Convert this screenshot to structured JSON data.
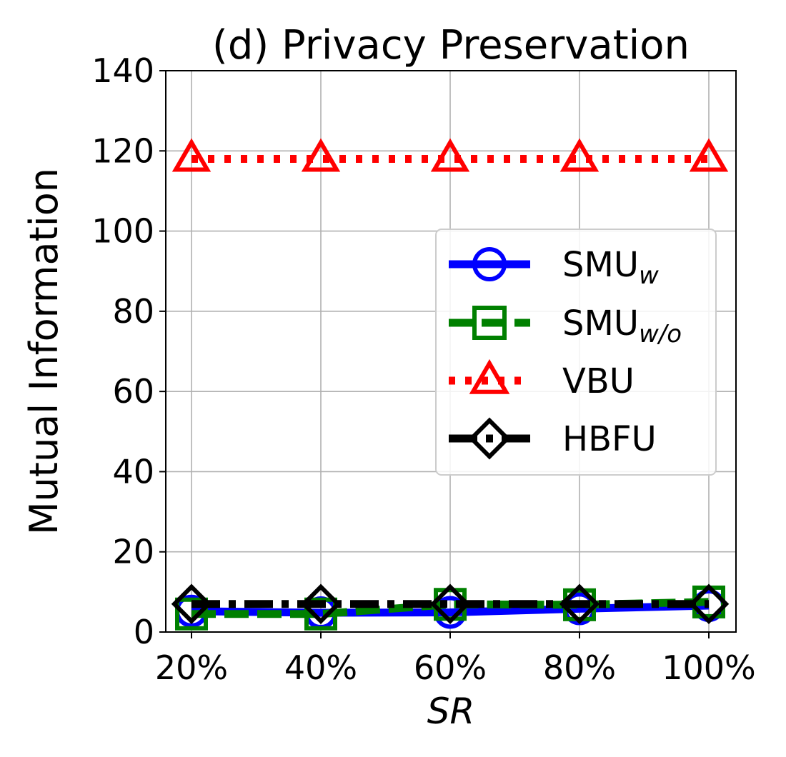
{
  "chart_data": {
    "type": "line",
    "title": "(d) Privacy Preservation",
    "xlabel": "SR",
    "ylabel": "Mutual Information",
    "categories": [
      "20%",
      "40%",
      "60%",
      "80%",
      "100%"
    ],
    "yticks": [
      "0",
      "20",
      "40",
      "60",
      "80",
      "100",
      "120",
      "140"
    ],
    "ylim": [
      0,
      140
    ],
    "grid": true,
    "legend_position": "center-right",
    "series": [
      {
        "name": "SMU",
        "name_sub": "w",
        "values": [
          5.2,
          4.8,
          4.9,
          5.8,
          6.6
        ],
        "color": "#0000ff",
        "marker": "circle",
        "line": "solid"
      },
      {
        "name": "SMU",
        "name_sub": "w/o",
        "values": [
          4.5,
          4.5,
          6.9,
          6.8,
          7.5
        ],
        "color": "#008000",
        "marker": "square",
        "line": "dashed"
      },
      {
        "name": "VBU",
        "name_sub": "",
        "values": [
          118,
          118,
          118,
          118,
          118
        ],
        "color": "#ff0000",
        "marker": "triangle",
        "line": "dotted"
      },
      {
        "name": "HBFU",
        "name_sub": "",
        "values": [
          7.0,
          7.0,
          7.0,
          7.0,
          7.0
        ],
        "color": "#000000",
        "marker": "diamond",
        "line": "dashdot"
      }
    ]
  }
}
